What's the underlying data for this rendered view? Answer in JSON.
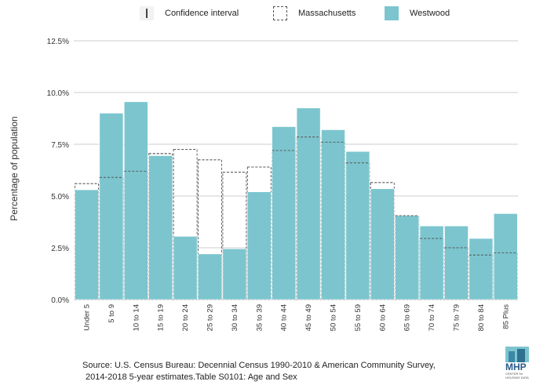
{
  "legend": {
    "ci": "Confidence interval",
    "ma": "Massachusetts",
    "ww": "Westwood"
  },
  "source": {
    "line1": "Source: U.S. Census Bureau: Decennial Census 1990-2010 & American Community Survey,",
    "line2": "2014-2018 5-year estimates.Table S0101: Age and Sex"
  },
  "logo": {
    "name": "MHP",
    "sub1": "CENTER for",
    "sub2": "HOUSING DATA"
  },
  "colors": {
    "westwood": "#7cc5ce",
    "massachusetts_outline": "#555555",
    "grid": "#bbbbbb"
  },
  "chart_data": {
    "type": "bar",
    "title": "",
    "xlabel": "",
    "ylabel": "Percentage of population",
    "ylim": [
      0,
      12.5
    ],
    "yticks": [
      0,
      2.5,
      5,
      7.5,
      10,
      12.5
    ],
    "ytick_labels": [
      "0.0%",
      "2.5%",
      "5.0%",
      "7.5%",
      "10.0%",
      "12.5%"
    ],
    "categories": [
      "Under 5",
      "5 to 9",
      "10 to 14",
      "15 to 19",
      "20 to 24",
      "25 to 29",
      "30 to 34",
      "35 to 39",
      "40 to 44",
      "45 to 49",
      "50 to 54",
      "55 to 59",
      "60 to 64",
      "65 to 69",
      "70 to 74",
      "75 to 79",
      "80 to 84",
      "85 Plus"
    ],
    "series": [
      {
        "name": "Westwood",
        "style": "filled",
        "values": [
          5.3,
          9.0,
          9.55,
          6.95,
          3.05,
          2.2,
          2.45,
          5.2,
          8.35,
          9.25,
          8.2,
          7.15,
          5.35,
          4.05,
          3.55,
          3.55,
          2.95,
          4.15
        ]
      },
      {
        "name": "Massachusetts",
        "style": "dashed-outline",
        "values": [
          5.6,
          5.9,
          6.2,
          7.05,
          7.25,
          6.75,
          6.15,
          6.4,
          7.2,
          7.85,
          7.6,
          6.6,
          5.65,
          4.05,
          2.95,
          2.5,
          2.15,
          2.25
        ]
      }
    ],
    "legend_position": "top",
    "grid": true
  }
}
